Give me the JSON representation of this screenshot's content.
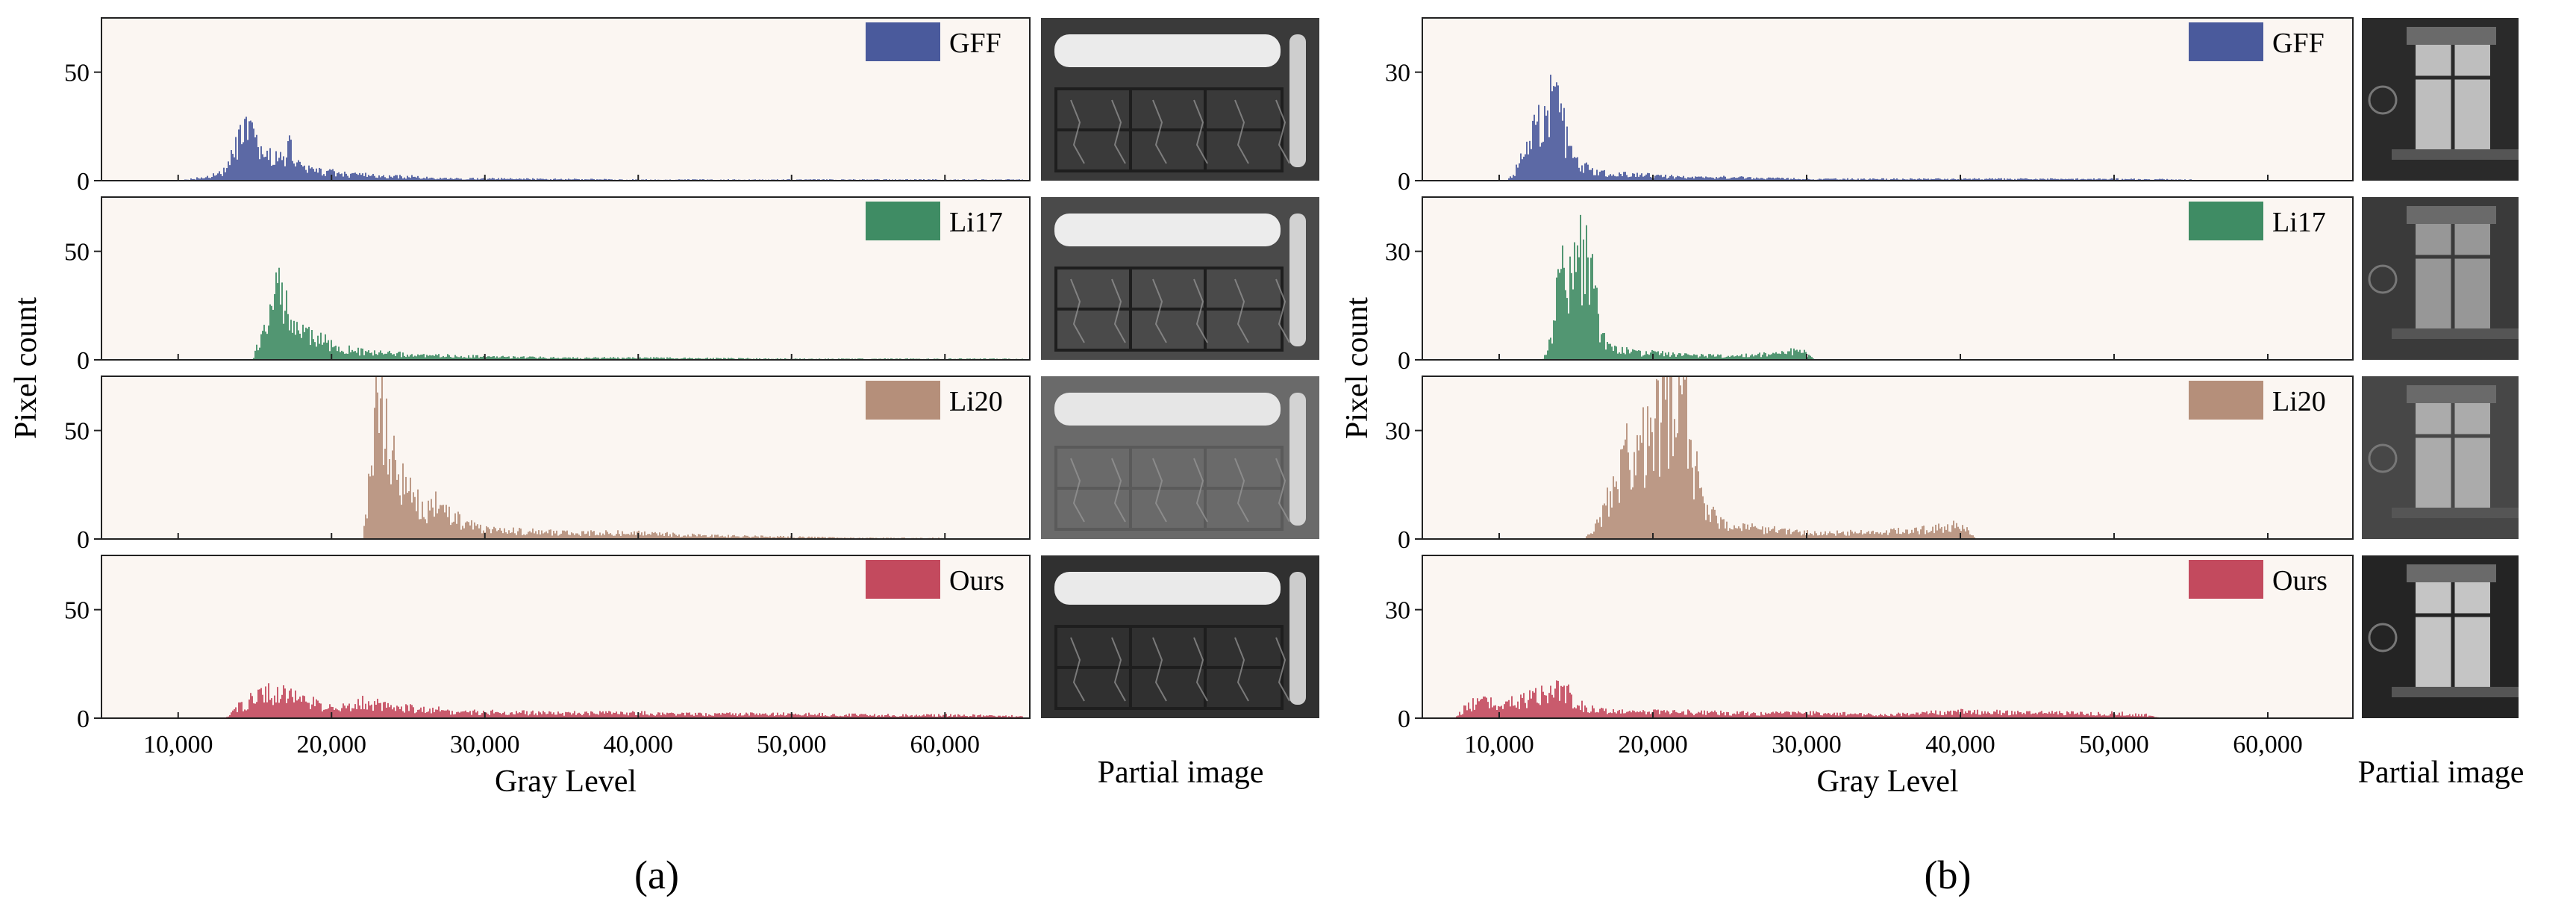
{
  "chart_data": [
    {
      "id": "a",
      "type": "histogram",
      "sublabel": "(a)",
      "xlabel": "Gray Level",
      "ylabel": "Pixel count",
      "xlim": [
        5000,
        65535
      ],
      "xticks": [
        10000,
        20000,
        30000,
        40000,
        50000,
        60000
      ],
      "xtick_labels": [
        "10,000",
        "20,000",
        "30,000",
        "40,000",
        "50,000",
        "60,000"
      ],
      "ylim": [
        0,
        75
      ],
      "yticks": [
        0,
        50
      ],
      "image_column_title": "Partial image",
      "series": [
        {
          "name": "GFF",
          "color": "#4a5a9c",
          "x": [
            10000,
            11000,
            12000,
            13000,
            13500,
            14000,
            14300,
            14600,
            15000,
            15400,
            15800,
            16200,
            16600,
            17000,
            17300,
            17700,
            18200,
            19000,
            20000,
            21000,
            22000,
            23000,
            24000,
            25000,
            26000,
            27000,
            30000,
            40000,
            50000,
            60000,
            65000
          ],
          "y": [
            0,
            1,
            2,
            5,
            12,
            20,
            26,
            22,
            18,
            15,
            12,
            13,
            10,
            15,
            16,
            9,
            6,
            5,
            4,
            3,
            3,
            2,
            2,
            2,
            1.5,
            1,
            1,
            0.5,
            0.5,
            0.5,
            0.5
          ]
        },
        {
          "name": "Li17",
          "color": "#3f8c64",
          "x": [
            14800,
            15200,
            15600,
            16000,
            16400,
            16800,
            17200,
            17600,
            18000,
            18500,
            19000,
            19500,
            20000,
            21000,
            22000,
            24000,
            26000,
            28000,
            30000,
            35000,
            40000,
            50000,
            60000,
            65000
          ],
          "y": [
            0,
            8,
            15,
            25,
            35,
            32,
            24,
            18,
            14,
            12,
            10,
            9,
            7,
            5,
            4,
            3,
            2,
            2,
            1.5,
            1,
            1,
            0.5,
            0.5,
            0.5
          ]
        },
        {
          "name": "Li20",
          "color": "#b58f7a",
          "x": [
            22000,
            22400,
            22800,
            23200,
            23600,
            24000,
            24500,
            25000,
            25500,
            26000,
            26500,
            27000,
            27500,
            28000,
            29000,
            30000,
            32000,
            35000,
            40000,
            43000,
            45000,
            50000,
            55000,
            60000
          ],
          "y": [
            0,
            30,
            60,
            68,
            52,
            38,
            30,
            24,
            18,
            15,
            17,
            16,
            13,
            10,
            7,
            5,
            4,
            3,
            3,
            2,
            1.5,
            1,
            0.5,
            0.5
          ]
        },
        {
          "name": "Ours",
          "color": "#c34a5e",
          "x": [
            13000,
            14000,
            15000,
            16000,
            17000,
            18000,
            19000,
            20000,
            21000,
            22000,
            23000,
            24000,
            25000,
            26000,
            27000,
            28000,
            30000,
            35000,
            40000,
            45000,
            50000,
            55000,
            60000,
            65000
          ],
          "y": [
            0,
            6,
            10,
            13,
            11,
            9,
            7,
            5,
            6,
            8,
            7,
            6,
            5,
            4,
            4,
            3,
            3,
            2.5,
            2.5,
            2,
            2,
            1.5,
            1.5,
            1
          ]
        }
      ]
    },
    {
      "id": "b",
      "type": "histogram",
      "sublabel": "(b)",
      "xlabel": "Gray Level",
      "ylabel": "Pixel count",
      "xlim": [
        5000,
        65535
      ],
      "xticks": [
        10000,
        20000,
        30000,
        40000,
        50000,
        60000
      ],
      "xtick_labels": [
        "10,000",
        "20,000",
        "30,000",
        "40,000",
        "50,000",
        "60,000"
      ],
      "ylim": [
        0,
        45
      ],
      "yticks": [
        0,
        30
      ],
      "image_column_title": "Partial image",
      "series": [
        {
          "name": "GFF",
          "color": "#4a5a9c",
          "x": [
            10500,
            11000,
            11500,
            12000,
            12500,
            13000,
            13500,
            13800,
            14200,
            14600,
            15000,
            16000,
            17000,
            18000,
            20000,
            22000,
            25000,
            30000,
            35000,
            40000,
            45000,
            50000,
            55000
          ],
          "y": [
            0,
            3,
            8,
            12,
            16,
            20,
            24,
            26,
            15,
            8,
            5,
            3,
            2,
            2,
            1.5,
            1,
            1,
            0.5,
            0.5,
            0.5,
            0.5,
            0.5,
            0.3
          ]
        },
        {
          "name": "Li17",
          "color": "#3f8c64",
          "x": [
            12800,
            13200,
            13600,
            14000,
            14400,
            14800,
            15200,
            15600,
            16000,
            16400,
            16800,
            17200,
            18000,
            19000,
            20000,
            22000,
            25000,
            28000,
            29500,
            30200,
            30500
          ],
          "y": [
            0,
            5,
            15,
            25,
            22,
            27,
            30,
            28,
            25,
            12,
            6,
            4,
            3,
            2,
            2,
            1.5,
            1,
            2,
            3,
            1,
            0
          ]
        },
        {
          "name": "Li20",
          "color": "#b58f7a",
          "x": [
            15500,
            16500,
            17000,
            17500,
            18000,
            18500,
            19000,
            19500,
            20000,
            20500,
            21000,
            21500,
            22000,
            22300,
            22700,
            23200,
            24000,
            25000,
            27000,
            30000,
            35000,
            38000,
            40000,
            40500,
            41000
          ],
          "y": [
            0,
            5,
            12,
            18,
            25,
            30,
            34,
            28,
            30,
            38,
            42,
            46,
            40,
            30,
            20,
            12,
            6,
            4,
            3,
            2,
            2,
            3,
            4,
            2,
            0
          ]
        },
        {
          "name": "Ours",
          "color": "#c34a5e",
          "x": [
            7000,
            8000,
            9000,
            10000,
            11000,
            12000,
            13000,
            13500,
            14000,
            14500,
            15000,
            16000,
            17000,
            20000,
            25000,
            30000,
            35000,
            40000,
            45000,
            50000,
            52000,
            53000
          ],
          "y": [
            0,
            4,
            5,
            4,
            5,
            6,
            7,
            8,
            9,
            7,
            4,
            3,
            2,
            2,
            1.5,
            1.5,
            1,
            2,
            1.5,
            1.5,
            1,
            0
          ]
        }
      ]
    }
  ]
}
